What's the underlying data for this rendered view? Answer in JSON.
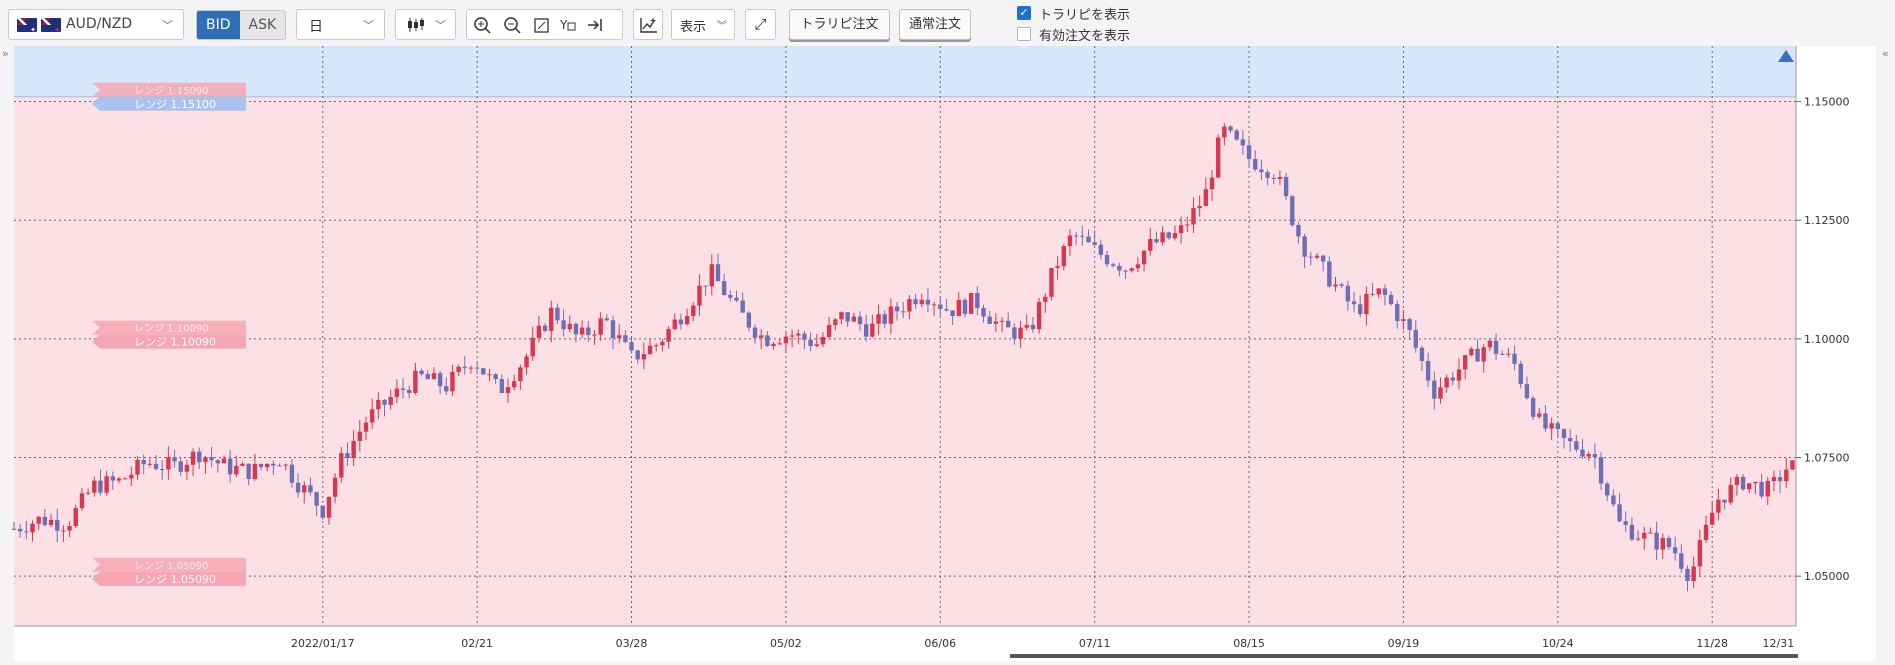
{
  "toolbar": {
    "pair": "AUD/NZD",
    "bid_label": "BID",
    "ask_label": "ASK",
    "timeframe": "日",
    "display_label": "表示",
    "trap_order_label": "トラリピ注文",
    "normal_order_label": "通常注文",
    "show_trap_label": "トラリピを表示",
    "show_trap_checked": true,
    "show_active_label": "有効注文を表示",
    "show_active_checked": false
  },
  "colors": {
    "up_candle": "#d8374f",
    "down_candle": "#6e6fb2",
    "range_band": "#fde0e5",
    "top_band": "#d6e6fb",
    "bid_active": "#2f6fb8",
    "range_tag": "#f6a6b3",
    "range_tag_blue": "#a9c2ef"
  },
  "chart_data": {
    "type": "candlestick",
    "symbol": "AUD/NZD",
    "ylim": [
      1.0395,
      1.1617
    ],
    "y_ticks": [
      "1.15000",
      "1.12500",
      "1.10000",
      "1.07500",
      "1.05000"
    ],
    "x_ticks": [
      "2022/01/17",
      "02/21",
      "03/28",
      "05/02",
      "06/06",
      "07/11",
      "08/15",
      "09/19",
      "10/24",
      "11/28",
      "12/31"
    ],
    "range_tags": [
      {
        "label": "レンジ 1.15100",
        "ghost": "レンジ 1.15090",
        "price": 1.151,
        "style": "blue"
      },
      {
        "label": "レンジ 1.10090",
        "ghost": "レンジ 1.10090",
        "price": 1.1009,
        "style": "pink"
      },
      {
        "label": "レンジ 1.05090",
        "ghost": "レンジ 1.05090",
        "price": 1.0509,
        "style": "pink"
      }
    ],
    "range_band": [
      1.0395,
      1.151
    ],
    "close_path": [
      [
        0,
        1.06
      ],
      [
        6,
        1.062
      ],
      [
        12,
        1.061
      ],
      [
        18,
        1.069
      ],
      [
        24,
        1.07
      ],
      [
        30,
        1.074
      ],
      [
        36,
        1.073
      ],
      [
        42,
        1.076
      ],
      [
        48,
        1.073
      ],
      [
        54,
        1.072
      ],
      [
        60,
        1.075
      ],
      [
        64,
        1.07
      ],
      [
        70,
        1.064
      ],
      [
        74,
        1.074
      ],
      [
        80,
        1.083
      ],
      [
        86,
        1.088
      ],
      [
        92,
        1.092
      ],
      [
        98,
        1.09
      ],
      [
        104,
        1.096
      ],
      [
        110,
        1.089
      ],
      [
        116,
        1.096
      ],
      [
        122,
        1.106
      ],
      [
        128,
        1.1
      ],
      [
        134,
        1.104
      ],
      [
        140,
        1.096
      ],
      [
        146,
        1.099
      ],
      [
        152,
        1.106
      ],
      [
        158,
        1.114
      ],
      [
        164,
        1.106
      ],
      [
        170,
        1.1
      ],
      [
        176,
        1.101
      ],
      [
        182,
        1.099
      ],
      [
        188,
        1.105
      ],
      [
        194,
        1.102
      ],
      [
        200,
        1.106
      ],
      [
        206,
        1.11
      ],
      [
        212,
        1.106
      ],
      [
        218,
        1.108
      ],
      [
        224,
        1.102
      ],
      [
        230,
        1.101
      ],
      [
        236,
        1.115
      ],
      [
        240,
        1.122
      ],
      [
        246,
        1.118
      ],
      [
        252,
        1.115
      ],
      [
        258,
        1.12
      ],
      [
        264,
        1.122
      ],
      [
        270,
        1.13
      ],
      [
        274,
        1.144
      ],
      [
        280,
        1.138
      ],
      [
        286,
        1.135
      ],
      [
        292,
        1.12
      ],
      [
        298,
        1.113
      ],
      [
        304,
        1.106
      ],
      [
        310,
        1.11
      ],
      [
        316,
        1.102
      ],
      [
        322,
        1.089
      ],
      [
        328,
        1.094
      ],
      [
        334,
        1.099
      ],
      [
        340,
        1.095
      ],
      [
        346,
        1.082
      ],
      [
        352,
        1.078
      ],
      [
        358,
        1.076
      ],
      [
        364,
        1.061
      ],
      [
        370,
        1.058
      ],
      [
        376,
        1.056
      ],
      [
        380,
        1.05
      ],
      [
        386,
        1.066
      ],
      [
        392,
        1.07
      ],
      [
        398,
        1.068
      ],
      [
        402,
        1.073
      ]
    ],
    "total_days": 404
  }
}
